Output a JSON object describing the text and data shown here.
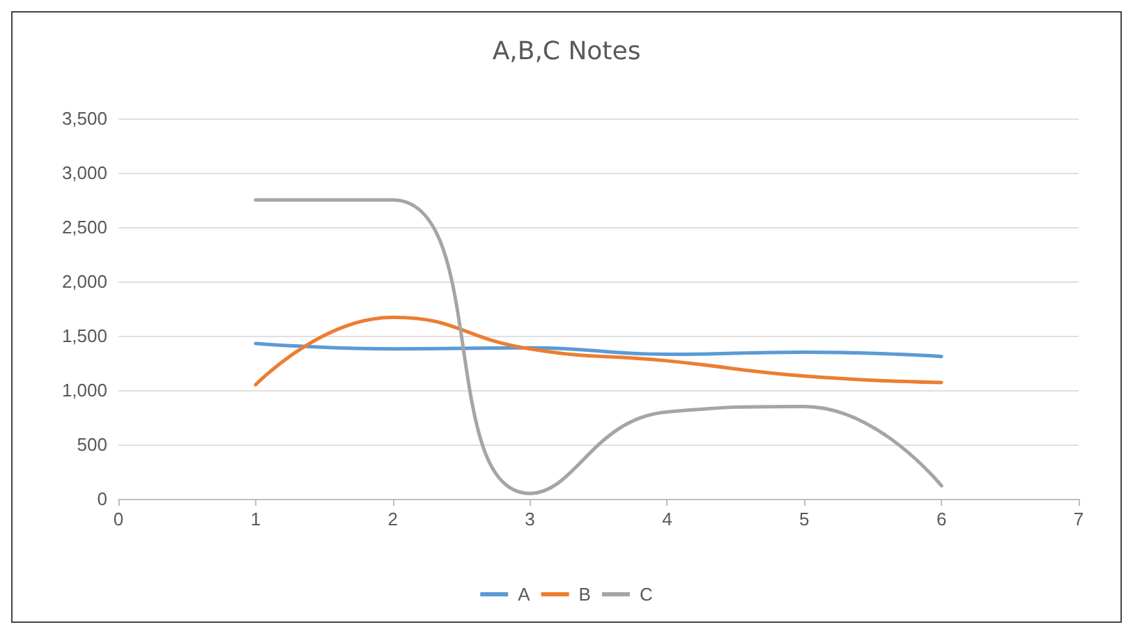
{
  "chart_data": {
    "type": "line",
    "title": "A,B,C Notes",
    "x": [
      1,
      2,
      3,
      4,
      5,
      6
    ],
    "series": [
      {
        "name": "A",
        "color": "#5b9bd5",
        "values": [
          1430,
          1380,
          1390,
          1330,
          1350,
          1310
        ]
      },
      {
        "name": "B",
        "color": "#ed7d31",
        "values": [
          1050,
          1670,
          1380,
          1270,
          1130,
          1070
        ]
      },
      {
        "name": "C",
        "color": "#a5a5a5",
        "values": [
          2750,
          2750,
          50,
          800,
          850,
          120
        ]
      }
    ],
    "xlim": [
      0,
      7
    ],
    "xticks": [
      0,
      1,
      2,
      3,
      4,
      5,
      6,
      7
    ],
    "ylim": [
      0,
      3500
    ],
    "yticks": [
      0,
      500,
      {
        "value": 1000,
        "label": "1,000"
      },
      {
        "value": 1500,
        "label": "1,500"
      },
      {
        "value": 2000,
        "label": "2,000"
      },
      {
        "value": 2500,
        "label": "2,500"
      },
      {
        "value": 3000,
        "label": "3,000"
      },
      {
        "value": 3500,
        "label": "3,500"
      }
    ],
    "grid": "y",
    "legend": "bottom",
    "marker": "none",
    "line_style": "solid"
  }
}
